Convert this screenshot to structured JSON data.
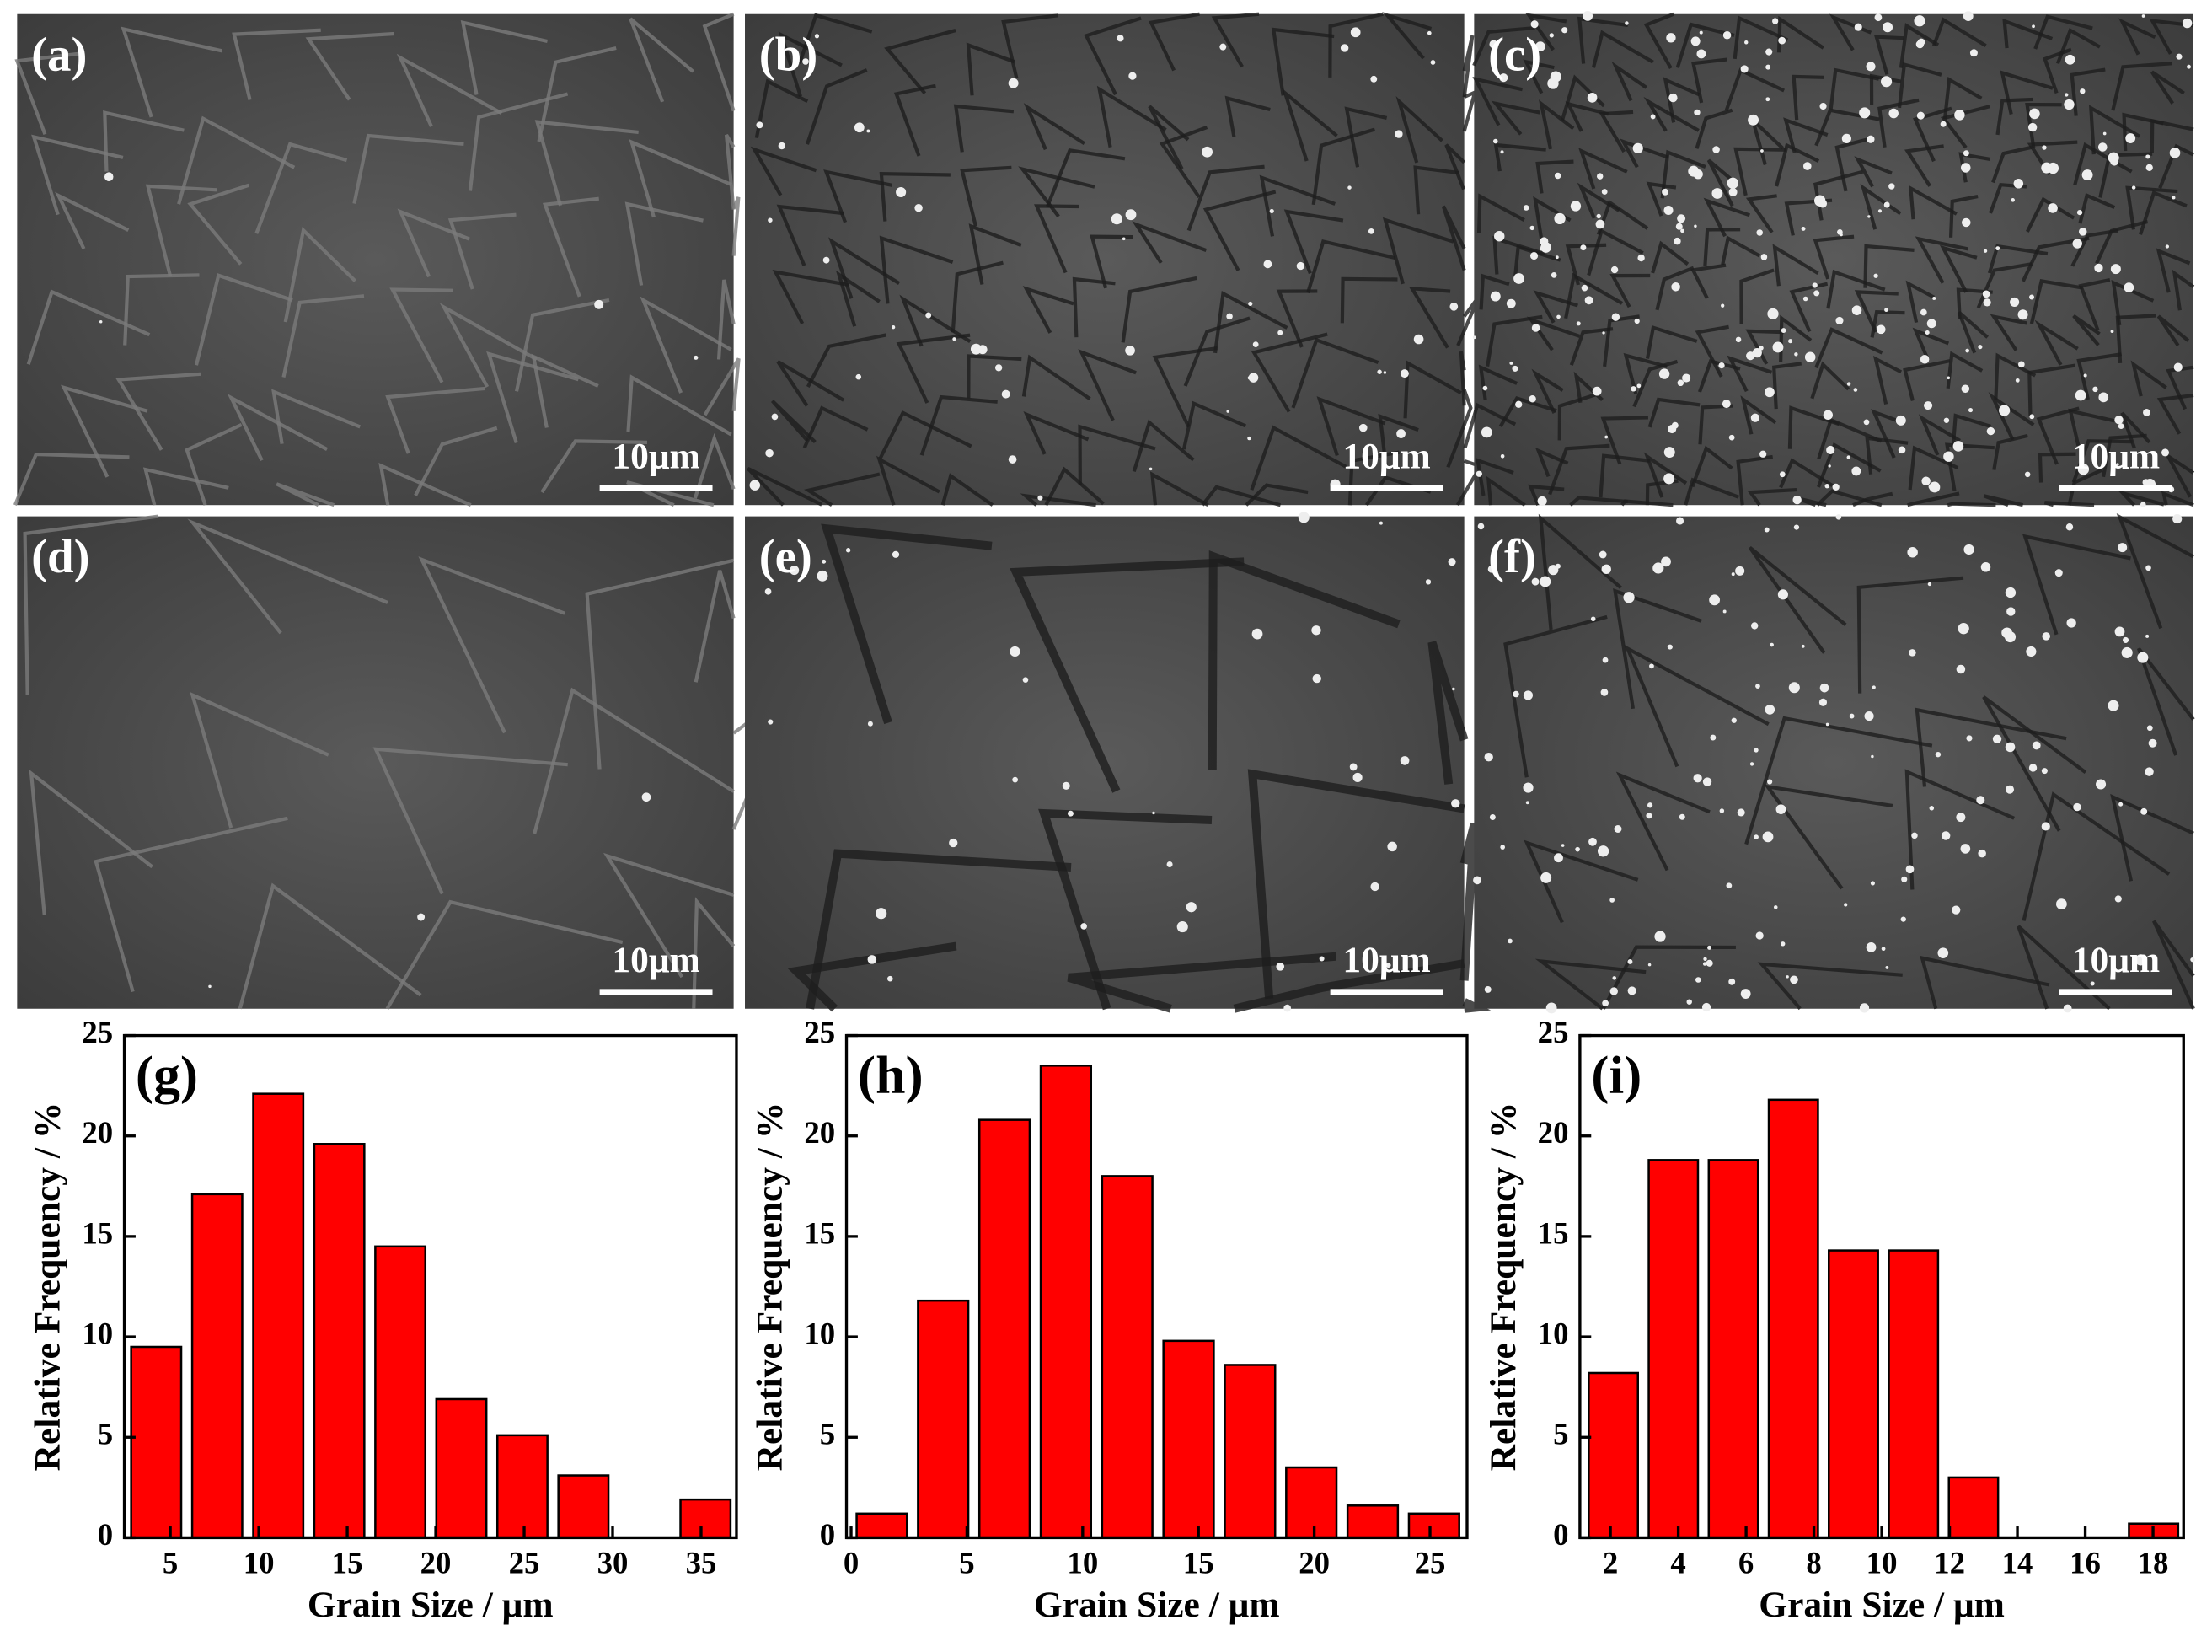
{
  "panels": [
    {
      "label": "(a)",
      "scale_bar": "10μm"
    },
    {
      "label": "(b)",
      "scale_bar": "10μm"
    },
    {
      "label": "(c)",
      "scale_bar": "10μm"
    },
    {
      "label": "(d)",
      "scale_bar": "10μm"
    },
    {
      "label": "(e)",
      "scale_bar": "10μm"
    },
    {
      "label": "(f)",
      "scale_bar": "10μm"
    }
  ],
  "chart_data": [
    {
      "type": "histogram",
      "panel_label": "(g)",
      "xlabel": "Grain Size / μm",
      "ylabel": "Relative Frequency / %",
      "color": "#ff0000",
      "bins": [
        2.475,
        5.925,
        9.375,
        12.825,
        16.275,
        19.725,
        23.175,
        26.625,
        30.075,
        33.525,
        36.975
      ],
      "values": [
        9.5,
        17.1,
        22.1,
        19.6,
        14.5,
        6.9,
        5.1,
        3.1,
        0,
        1.9
      ],
      "xlim": [
        2.4,
        37
      ],
      "xticks": [
        5,
        10,
        15,
        20,
        25,
        30,
        35
      ],
      "ylim": [
        0,
        25
      ],
      "yticks": [
        0,
        5,
        10,
        15,
        20,
        25
      ]
    },
    {
      "type": "histogram",
      "panel_label": "(h)",
      "xlabel": "Grain Size / μm",
      "ylabel": "Relative Frequency / %",
      "color": "#ff0000",
      "bins": [
        0,
        2.65,
        5.3,
        7.95,
        10.6,
        13.25,
        15.9,
        18.55,
        21.2,
        23.85,
        26.5
      ],
      "values": [
        1.2,
        11.8,
        20.8,
        23.5,
        18.0,
        9.8,
        8.6,
        3.5,
        1.6,
        1.2
      ],
      "xlim": [
        -0.2,
        26.6
      ],
      "xticks": [
        0,
        5,
        10,
        15,
        20,
        25
      ],
      "ylim": [
        0,
        25
      ],
      "yticks": [
        0,
        5,
        10,
        15,
        20,
        25
      ]
    },
    {
      "type": "histogram",
      "panel_label": "(i)",
      "xlabel": "Grain Size / μm",
      "ylabel": "Relative Frequency / %",
      "color": "#ff0000",
      "bins": [
        1.2,
        2.97,
        4.74,
        6.51,
        8.28,
        10.05,
        11.82,
        13.59,
        15.36,
        17.13,
        18.9
      ],
      "values": [
        8.2,
        18.8,
        18.8,
        21.8,
        14.3,
        14.3,
        3.0,
        0,
        0,
        0.7
      ],
      "xlim": [
        1.1,
        18.9
      ],
      "xticks": [
        2,
        4,
        6,
        8,
        10,
        12,
        14,
        16,
        18
      ],
      "ylim": [
        0,
        25
      ],
      "yticks": [
        0,
        5,
        10,
        15,
        20,
        25
      ]
    }
  ]
}
